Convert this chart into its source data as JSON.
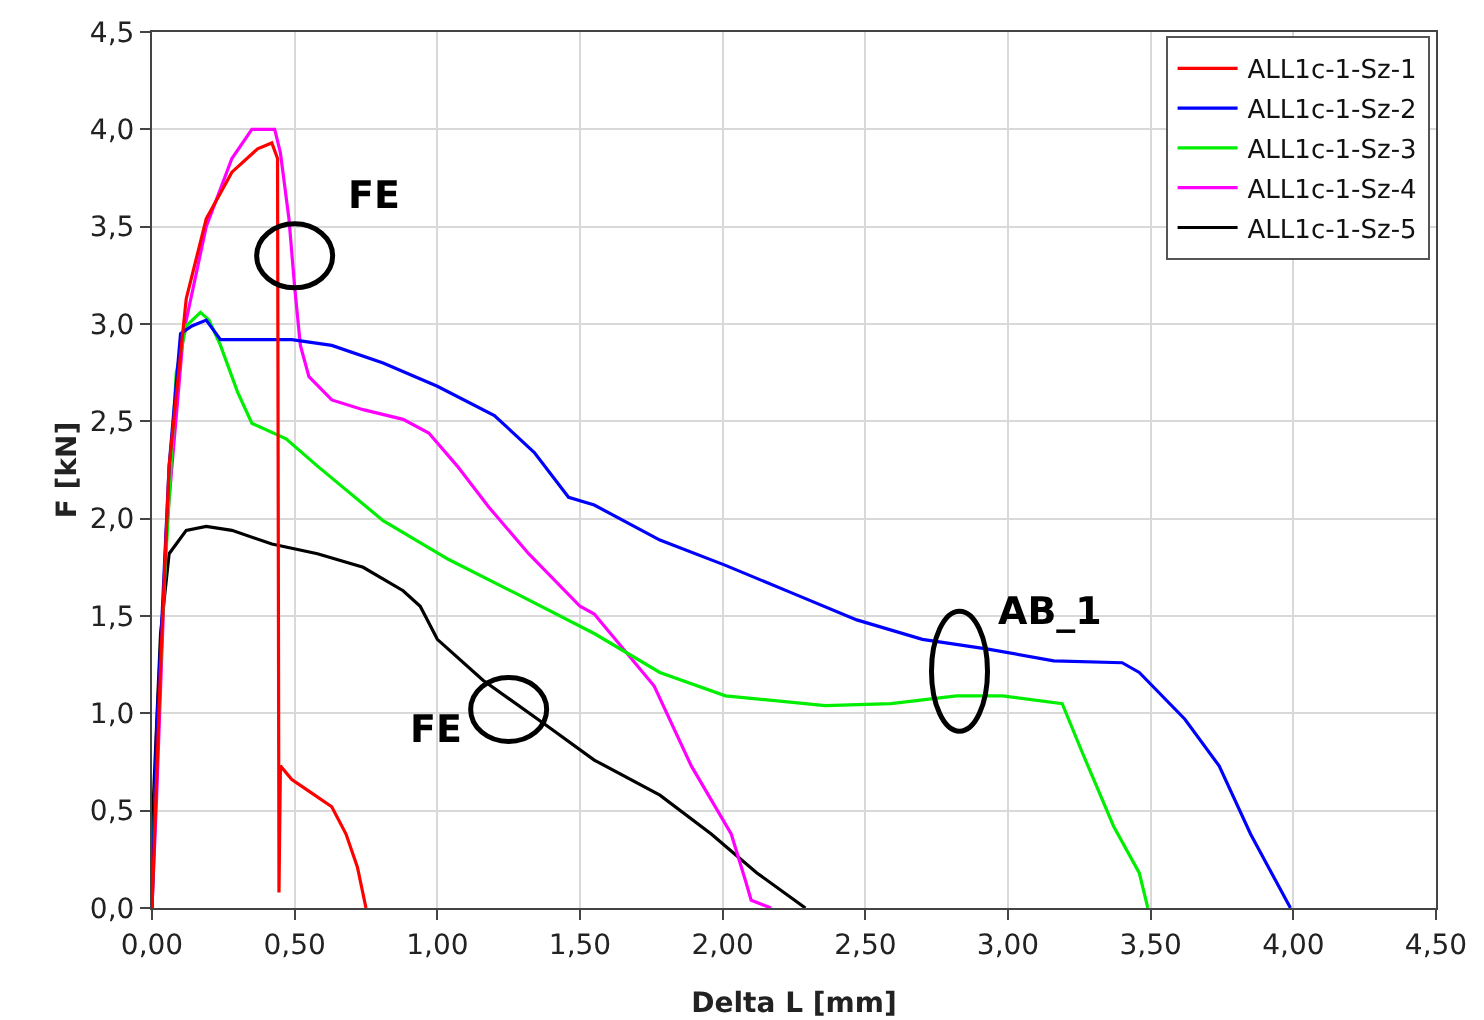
{
  "chart_data": {
    "type": "line",
    "xlabel": "Delta L [mm]",
    "ylabel": "F [kN]",
    "xlim": [
      0,
      4.5
    ],
    "ylim": [
      0,
      4.5
    ],
    "xticks": [
      {
        "value": 0,
        "label": "0,00"
      },
      {
        "value": 0.5,
        "label": "0,50"
      },
      {
        "value": 1,
        "label": "1,00"
      },
      {
        "value": 1.5,
        "label": "1,50"
      },
      {
        "value": 2,
        "label": "2,00"
      },
      {
        "value": 2.5,
        "label": "2,50"
      },
      {
        "value": 3,
        "label": "3,00"
      },
      {
        "value": 3.5,
        "label": "3,50"
      },
      {
        "value": 4,
        "label": "4,00"
      },
      {
        "value": 4.5,
        "label": "4,50"
      }
    ],
    "yticks": [
      {
        "value": 0,
        "label": "0,0"
      },
      {
        "value": 0.5,
        "label": "0,5"
      },
      {
        "value": 1,
        "label": "1,0"
      },
      {
        "value": 1.5,
        "label": "1,5"
      },
      {
        "value": 2,
        "label": "2,0"
      },
      {
        "value": 2.5,
        "label": "2,5"
      },
      {
        "value": 3,
        "label": "3,0"
      },
      {
        "value": 3.5,
        "label": "3,5"
      },
      {
        "value": 4,
        "label": "4,0"
      },
      {
        "value": 4.5,
        "label": "4,5"
      }
    ],
    "grid": true,
    "legend": "top right",
    "marker": "none",
    "line_style": "solid",
    "series": [
      {
        "name": "ALL1c-1-Sz-1",
        "color": "#ff0000",
        "x": [
          0,
          0.03,
          0.06,
          0.12,
          0.19,
          0.28,
          0.37,
          0.42,
          0.44,
          0.445,
          0.45,
          0.49,
          0.56,
          0.63,
          0.68,
          0.72,
          0.75
        ],
        "values": [
          0,
          1.24,
          2.27,
          3.13,
          3.54,
          3.78,
          3.9,
          3.93,
          3.85,
          0.08,
          0.73,
          0.66,
          0.59,
          0.52,
          0.38,
          0.21,
          0
        ]
      },
      {
        "name": "ALL1c-1-Sz-2",
        "color": "#0000ff",
        "x": [
          0,
          0.016,
          0.06,
          0.1,
          0.14,
          0.19,
          0.24,
          0.35,
          0.49,
          0.63,
          0.81,
          1.0,
          1.2,
          1.34,
          1.46,
          1.55,
          1.78,
          2.01,
          2.24,
          2.47,
          2.7,
          2.93,
          3.16,
          3.4,
          3.46,
          3.62,
          3.74,
          3.85,
          3.99
        ],
        "values": [
          0,
          0.9,
          2.27,
          2.95,
          2.99,
          3.02,
          2.92,
          2.92,
          2.92,
          2.89,
          2.8,
          2.68,
          2.53,
          2.34,
          2.11,
          2.07,
          1.89,
          1.76,
          1.62,
          1.48,
          1.38,
          1.33,
          1.27,
          1.26,
          1.21,
          0.97,
          0.73,
          0.38,
          0
        ]
      },
      {
        "name": "ALL1c-1-Sz-3",
        "color": "#00ee00",
        "x": [
          0,
          0.01,
          0.04,
          0.085,
          0.12,
          0.17,
          0.2,
          0.24,
          0.3,
          0.35,
          0.47,
          0.58,
          0.81,
          1.04,
          1.27,
          1.55,
          1.78,
          2.01,
          2.36,
          2.59,
          2.82,
          2.98,
          3.19,
          3.26,
          3.37,
          3.46,
          3.49
        ],
        "values": [
          0,
          0.56,
          1.58,
          2.75,
          2.99,
          3.06,
          3.02,
          2.89,
          2.65,
          2.49,
          2.41,
          2.27,
          1.99,
          1.79,
          1.62,
          1.41,
          1.21,
          1.09,
          1.04,
          1.05,
          1.09,
          1.09,
          1.05,
          0.8,
          0.42,
          0.18,
          0
        ]
      },
      {
        "name": "ALL1c-1-Sz-4",
        "color": "#ff00ff",
        "x": [
          0,
          0.016,
          0.05,
          0.11,
          0.19,
          0.28,
          0.35,
          0.43,
          0.45,
          0.48,
          0.5,
          0.52,
          0.55,
          0.63,
          0.74,
          0.88,
          0.97,
          1.07,
          1.18,
          1.32,
          1.5,
          1.55,
          1.76,
          1.89,
          2.03,
          2.08,
          2.1,
          2.17
        ],
        "values": [
          0,
          0.56,
          1.93,
          2.95,
          3.5,
          3.85,
          4.0,
          4.0,
          3.88,
          3.54,
          3.19,
          2.89,
          2.73,
          2.61,
          2.56,
          2.51,
          2.44,
          2.27,
          2.06,
          1.82,
          1.55,
          1.51,
          1.14,
          0.73,
          0.38,
          0.14,
          0.04,
          0
        ]
      },
      {
        "name": "ALL1c-1-Sz-5",
        "color": "#000000",
        "x": [
          0,
          0.005,
          0.03,
          0.06,
          0.12,
          0.19,
          0.28,
          0.42,
          0.58,
          0.74,
          0.88,
          0.94,
          1.0,
          1.16,
          1.39,
          1.55,
          1.78,
          1.96,
          2.12,
          2.29
        ],
        "values": [
          0,
          0.56,
          1.41,
          1.82,
          1.94,
          1.96,
          1.94,
          1.87,
          1.82,
          1.75,
          1.63,
          1.55,
          1.38,
          1.17,
          0.93,
          0.76,
          0.58,
          0.38,
          0.18,
          0
        ]
      }
    ],
    "annotations": [
      {
        "text": "FE",
        "x": 0.5,
        "y": 3.35
      },
      {
        "text": "FE",
        "x": 1.25,
        "y": 1.02
      },
      {
        "text": "AB_1",
        "x": 2.83,
        "y": 1.35
      }
    ]
  }
}
